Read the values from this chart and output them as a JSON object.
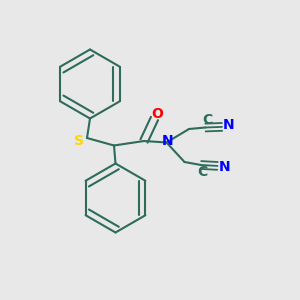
{
  "background_color": "#e8e8e8",
  "bond_color": "#2d6b5a",
  "S_color": "#FFD700",
  "N_color": "#0000FF",
  "O_color": "#FF0000",
  "C_color": "#2d6b5a",
  "N_label": "N",
  "O_label": "O",
  "S_label": "S",
  "C_label": "C",
  "N_label2": "N",
  "N_label3": "N"
}
